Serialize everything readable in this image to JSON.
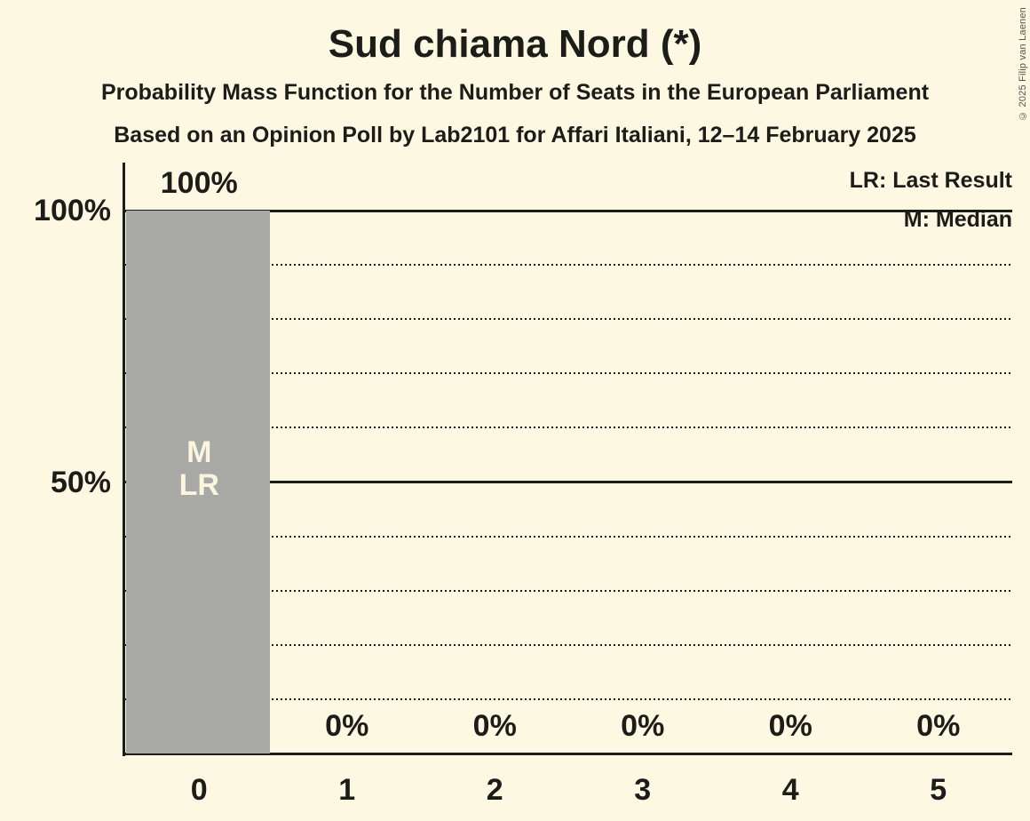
{
  "title": "Sud chiama Nord (*)",
  "subtitle1": "Probability Mass Function for the Number of Seats in the European Parliament",
  "subtitle2": "Based on an Opinion Poll by Lab2101 for Affari Italiani, 12–14 February 2025",
  "copyright": "© 2025 Filip van Laenen",
  "legend": {
    "items": [
      "LR: Last Result",
      "M: Median"
    ]
  },
  "colors": {
    "background": "#fcf8e2",
    "bar": "#a8a8a6",
    "ink": "#1c1c19",
    "bar_annotation_text": "#faf5dc"
  },
  "chart_data": {
    "type": "bar",
    "title": "Sud chiama Nord (*)",
    "categories": [
      "0",
      "1",
      "2",
      "3",
      "4",
      "5"
    ],
    "values": [
      100,
      0,
      0,
      0,
      0,
      0
    ],
    "value_labels": [
      "100%",
      "0%",
      "0%",
      "0%",
      "0%",
      "0%"
    ],
    "annotations": [
      {
        "category_index": 0,
        "text": "M\nLR"
      }
    ],
    "xlabel": "",
    "ylabel": "",
    "ylim": [
      0,
      100
    ],
    "yticks": [
      {
        "pct": 100,
        "label": "100%"
      },
      {
        "pct": 50,
        "label": "50%"
      }
    ],
    "gridlines": {
      "dotted_every_pct": 10,
      "solid_pct": [
        0,
        50,
        100
      ]
    },
    "grid": "on",
    "legend_position": "top-right"
  }
}
